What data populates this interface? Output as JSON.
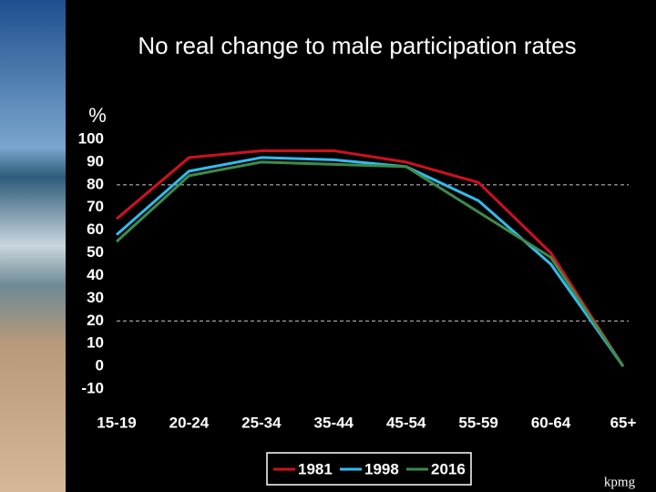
{
  "chart_data": {
    "type": "line",
    "title": "No real change to male participation rates",
    "y_label": "%",
    "categories": [
      "15-19",
      "20-24",
      "25-34",
      "35-44",
      "45-54",
      "55-59",
      "60-64",
      "65+"
    ],
    "series": [
      {
        "name": "1981",
        "color": "#d01020",
        "values": [
          65,
          92,
          95,
          95,
          90,
          81,
          50,
          0
        ]
      },
      {
        "name": "1998",
        "color": "#33bbee",
        "values": [
          58,
          86,
          92,
          91,
          88,
          73,
          45,
          0
        ]
      },
      {
        "name": "2016",
        "color": "#3c8c4c",
        "values": [
          55,
          84,
          90,
          89,
          88,
          68,
          48,
          0
        ]
      }
    ],
    "ylim": [
      -10,
      100
    ],
    "yticks": [
      -10,
      0,
      10,
      20,
      30,
      40,
      50,
      60,
      70,
      80,
      90,
      100
    ],
    "reference_lines": [
      20,
      80
    ],
    "logo": "kpmg"
  }
}
